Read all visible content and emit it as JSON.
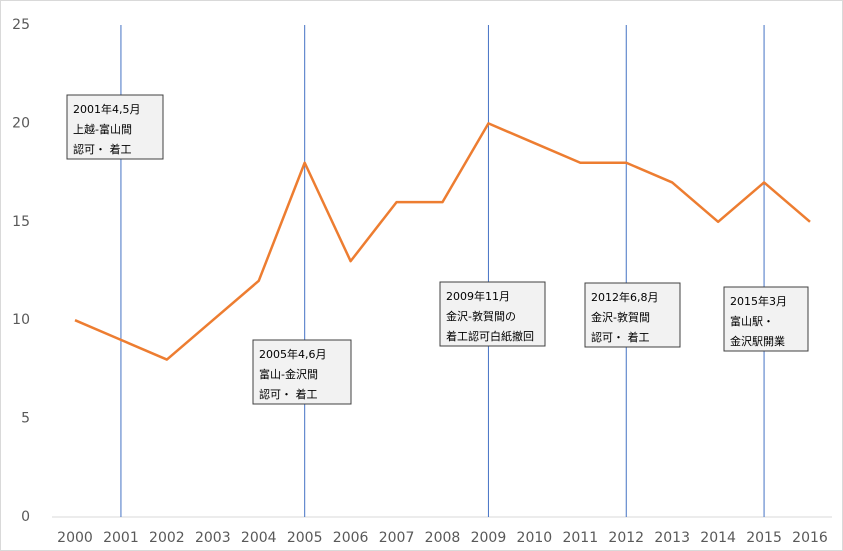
{
  "chart_data": {
    "type": "line",
    "categories": [
      "2000",
      "2001",
      "2002",
      "2003",
      "2004",
      "2005",
      "2006",
      "2007",
      "2008",
      "2009",
      "2010",
      "2011",
      "2012",
      "2013",
      "2014",
      "2015",
      "2016"
    ],
    "series": [
      {
        "color": "#ed7d31",
        "values": [
          10,
          9,
          8,
          10,
          12,
          18,
          13,
          16,
          16,
          20,
          19,
          18,
          18,
          17,
          15,
          17,
          15
        ]
      }
    ],
    "ylim": [
      0,
      25
    ],
    "yticks": [
      0,
      5,
      10,
      15,
      20,
      25
    ],
    "grid": false,
    "annotation_line_color": "#4472c4",
    "annotations": [
      {
        "x": "2001",
        "lines": [
          "2001年4,5月",
          "上越-富山間",
          "認可・ 着工"
        ]
      },
      {
        "x": "2005",
        "lines": [
          "2005年4,6月",
          "富山-金沢間",
          "認可・ 着工"
        ]
      },
      {
        "x": "2009",
        "lines": [
          "2009年11月",
          "金沢-敦賀間の",
          "着工認可白紙撤回"
        ]
      },
      {
        "x": "2012",
        "lines": [
          "2012年6,8月",
          "金沢-敦賀間",
          "認可・ 着工"
        ]
      },
      {
        "x": "2015",
        "lines": [
          "2015年3月",
          "富山駅・",
          "金沢駅開業"
        ]
      }
    ]
  }
}
